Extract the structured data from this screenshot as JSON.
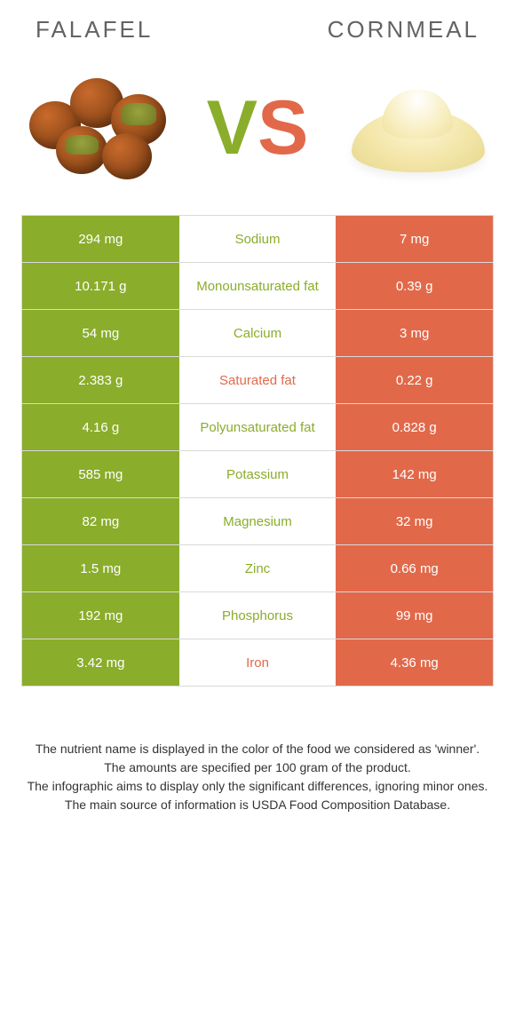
{
  "colors": {
    "food1": "#8aad2b",
    "food2": "#e1694a",
    "food1_text": "#8aad2b",
    "food2_text": "#e1694a",
    "row_border": "#d9d9d9",
    "title_color": "#636363"
  },
  "header": {
    "food1": "Falafel",
    "food2": "Cornmeal"
  },
  "vs": {
    "v": "V",
    "s": "S"
  },
  "rows": [
    {
      "left": "294 mg",
      "name": "Sodium",
      "right": "7 mg",
      "winner": "food1"
    },
    {
      "left": "10.171 g",
      "name": "Monounsaturated fat",
      "right": "0.39 g",
      "winner": "food1"
    },
    {
      "left": "54 mg",
      "name": "Calcium",
      "right": "3 mg",
      "winner": "food1"
    },
    {
      "left": "2.383 g",
      "name": "Saturated fat",
      "right": "0.22 g",
      "winner": "food2"
    },
    {
      "left": "4.16 g",
      "name": "Polyunsaturated fat",
      "right": "0.828 g",
      "winner": "food1"
    },
    {
      "left": "585 mg",
      "name": "Potassium",
      "right": "142 mg",
      "winner": "food1"
    },
    {
      "left": "82 mg",
      "name": "Magnesium",
      "right": "32 mg",
      "winner": "food1"
    },
    {
      "left": "1.5 mg",
      "name": "Zinc",
      "right": "0.66 mg",
      "winner": "food1"
    },
    {
      "left": "192 mg",
      "name": "Phosphorus",
      "right": "99 mg",
      "winner": "food1"
    },
    {
      "left": "3.42 mg",
      "name": "Iron",
      "right": "4.36 mg",
      "winner": "food2"
    }
  ],
  "footer": [
    "The nutrient name is displayed in the color of the food we considered as 'winner'.",
    "The amounts are specified per 100 gram of the product.",
    "The infographic aims to display only the significant differences, ignoring minor ones.",
    "The main source of information is USDA Food Composition Database."
  ]
}
